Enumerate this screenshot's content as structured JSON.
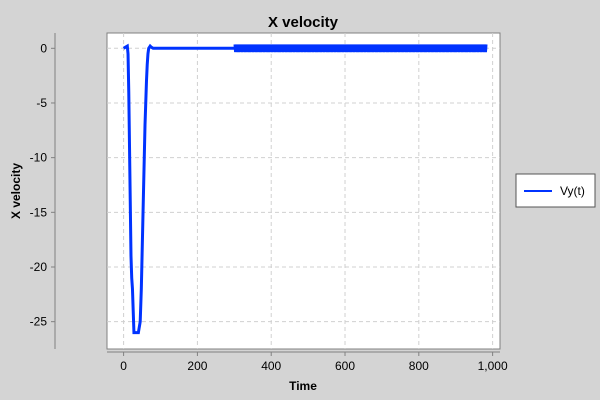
{
  "chart_data": {
    "type": "line",
    "title": "X velocity",
    "xlabel": "Time",
    "ylabel": "X velocity",
    "xlim": [
      -45,
      1020
    ],
    "ylim": [
      -27.5,
      1.4
    ],
    "x_ticks": [
      0,
      200,
      400,
      600,
      800,
      1000
    ],
    "x_tick_labels": [
      "0",
      "200",
      "400",
      "600",
      "800",
      "1,000"
    ],
    "y_ticks": [
      0,
      -5,
      -10,
      -15,
      -20,
      -25
    ],
    "y_tick_labels": [
      "0",
      "-5",
      "-10",
      "-15",
      "-20",
      "-25"
    ],
    "grid": true,
    "legend_position": "right",
    "series": [
      {
        "name": "Vy(t)",
        "color": "#0033ff",
        "x": [
          0,
          5,
          10,
          12,
          14,
          16,
          18,
          20,
          22,
          24,
          26,
          28,
          30,
          40,
          45,
          48,
          50,
          52,
          54,
          56,
          58,
          60,
          62,
          64,
          66,
          68,
          70,
          72,
          75,
          80,
          100,
          200,
          300,
          985
        ],
        "y": [
          0,
          0.1,
          0.2,
          -0.5,
          -4,
          -9,
          -14,
          -19,
          -21,
          -22,
          -24,
          -26,
          -26,
          -26,
          -25,
          -22,
          -19,
          -16,
          -13,
          -10,
          -7,
          -5,
          -3,
          -1.5,
          -0.5,
          0,
          0.1,
          0.2,
          0.1,
          0,
          0,
          0,
          0,
          0
        ]
      }
    ],
    "noise_band": {
      "x_start": 300,
      "x_end": 985,
      "amplitude": 0.35
    }
  }
}
